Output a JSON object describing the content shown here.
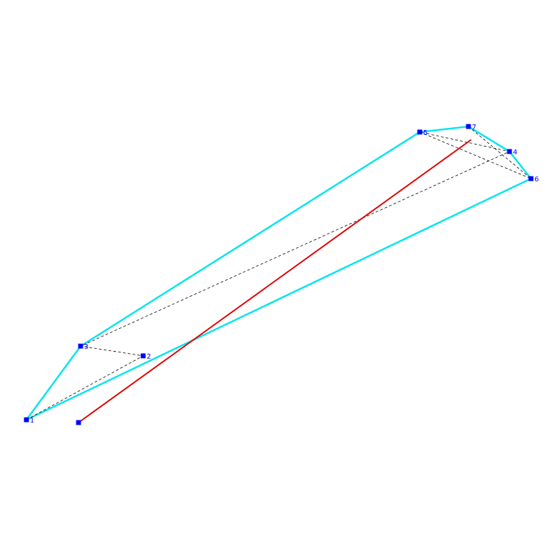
{
  "points": [
    "1",
    "2",
    "3",
    "4",
    "5",
    "6",
    "7"
  ]
}
